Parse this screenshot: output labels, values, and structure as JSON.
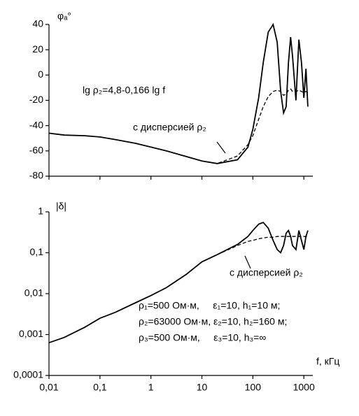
{
  "chart_data": [
    {
      "type": "line",
      "y_label": "φₐ°",
      "xlog": true,
      "annotations": [
        "lg ρ₂=4,8-0,166 lg f",
        "с дисперсией ρ₂"
      ],
      "x": [
        0.01,
        0.02,
        0.05,
        0.1,
        0.2,
        0.5,
        1,
        2,
        5,
        10,
        20,
        50,
        80,
        100,
        130,
        160,
        200,
        250,
        300,
        350,
        400,
        450,
        500,
        550,
        600,
        700,
        800,
        900,
        1000,
        1100,
        1200
      ],
      "series": [
        {
          "color": "#000000",
          "dash": false,
          "values": [
            -46,
            -47.5,
            -48,
            -49,
            -51,
            -54,
            -57,
            -60,
            -64.5,
            -68,
            -70,
            -67,
            -57,
            -43,
            -18,
            10,
            34,
            40,
            26,
            -12.5,
            -30,
            -25,
            10,
            30,
            15,
            -20,
            28,
            10,
            -18,
            5,
            -25
          ]
        },
        {
          "color": "#000000",
          "dash": true,
          "values": [
            null,
            null,
            null,
            null,
            null,
            null,
            null,
            null,
            null,
            -68,
            -70,
            -64,
            -55,
            -48,
            -35,
            -25,
            -17,
            -13,
            -12,
            -13,
            -16,
            -15,
            -12,
            -11,
            -13,
            -13,
            -12,
            -13,
            -14,
            -13,
            -14
          ]
        }
      ],
      "xlim": [
        0.01,
        1500
      ],
      "xticks": [
        0.01,
        0.1,
        1,
        10,
        100,
        1000
      ],
      "ylim": [
        -80,
        40
      ],
      "yticks": [
        40,
        20,
        0,
        -20,
        -40,
        -60,
        -80
      ]
    },
    {
      "type": "line",
      "y_label": "|δ|",
      "x_label": "f, кГц",
      "xlog": true,
      "ylog": true,
      "annotations": [
        "с дисперсией ρ₂",
        "ρ₁=500 Ом·м,     ε₁=10, h₁=10 м;",
        "ρ₂=63000 Ом·м, ε₂=10, h₂=160 м;",
        "ρ₃=500 Ом·м,     ε₃=10, h₃=∞"
      ],
      "x": [
        0.01,
        0.02,
        0.05,
        0.1,
        0.2,
        0.5,
        1,
        2,
        5,
        10,
        20,
        50,
        80,
        100,
        130,
        160,
        200,
        250,
        300,
        350,
        400,
        450,
        500,
        550,
        600,
        700,
        800,
        900,
        1000,
        1100,
        1200
      ],
      "series": [
        {
          "color": "#000000",
          "dash": false,
          "values": [
            0.00063,
            0.00085,
            0.0015,
            0.0025,
            0.0035,
            0.006,
            0.009,
            0.014,
            0.03,
            0.06,
            0.09,
            0.16,
            0.25,
            0.35,
            0.5,
            0.55,
            0.4,
            0.2,
            0.12,
            0.1,
            0.15,
            0.3,
            0.35,
            0.25,
            0.15,
            0.12,
            0.35,
            0.2,
            0.12,
            0.25,
            0.35
          ]
        },
        {
          "color": "#000000",
          "dash": true,
          "values": [
            null,
            null,
            null,
            null,
            null,
            null,
            null,
            null,
            null,
            0.06,
            0.09,
            0.15,
            0.19,
            0.2,
            0.22,
            0.23,
            0.24,
            0.24,
            0.25,
            0.25,
            0.25,
            0.25,
            0.25,
            0.25,
            0.25,
            0.25,
            0.25,
            0.25,
            0.25,
            0.25,
            0.25
          ]
        }
      ],
      "xlim": [
        0.01,
        1500
      ],
      "xticks": [
        {
          "value": 0.01,
          "label": "0,01"
        },
        {
          "value": 0.1,
          "label": "0,1"
        },
        1,
        10,
        100,
        1000
      ],
      "ylim": [
        0.0001,
        1
      ],
      "yticks": [
        1,
        {
          "value": 0.1,
          "label": "0,1"
        },
        {
          "value": 0.01,
          "label": "0,01"
        },
        {
          "value": 0.001,
          "label": "0,001"
        },
        {
          "value": 0.0001,
          "label": "0,0001"
        }
      ]
    }
  ]
}
